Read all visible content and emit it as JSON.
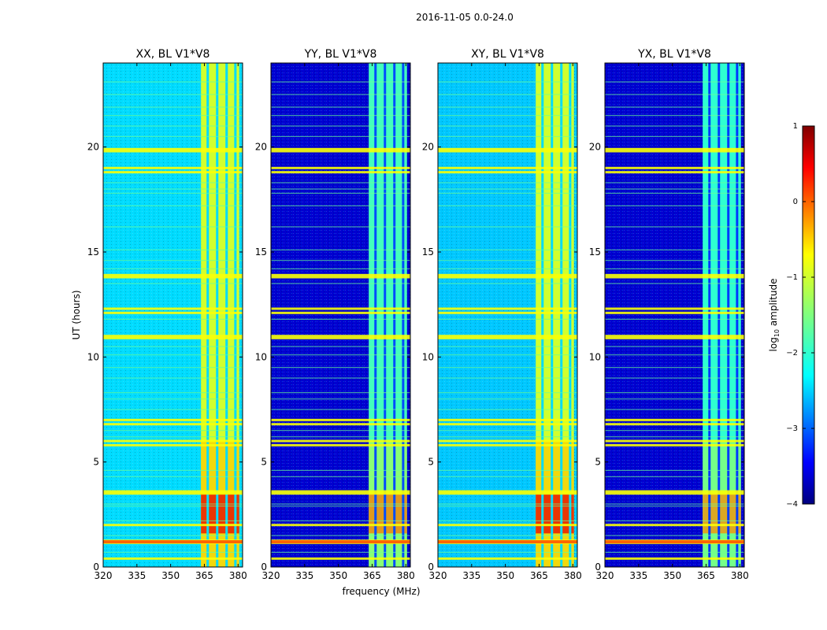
{
  "chart_data": {
    "type": "heatmap",
    "suptitle": "2016-11-05 0.0-24.0",
    "xlabel": "frequency (MHz)",
    "ylabel": "UT (hours)",
    "xlim": [
      320,
      382
    ],
    "ylim": [
      0,
      24
    ],
    "xticks": [
      320,
      335,
      350,
      365,
      380
    ],
    "yticks": [
      0,
      5,
      10,
      15,
      20
    ],
    "panels": [
      {
        "title": "XX, BL V1*V8",
        "background_level": -2.3,
        "band_level": -1.1
      },
      {
        "title": "YY, BL V1*V8",
        "background_level": -3.6,
        "band_level": -1.8
      },
      {
        "title": "XY, BL V1*V8",
        "background_level": -2.4,
        "band_level": -1.1
      },
      {
        "title": "YX, BL V1*V8",
        "background_level": -3.6,
        "band_level": -1.9
      }
    ],
    "band": {
      "start_mhz": 363.5,
      "end_mhz": 380.5,
      "channel_gaps_mhz": [
        366.5,
        370.7,
        374.9,
        378.8
      ]
    },
    "strong_rfi_hours": [
      0.4,
      1.15,
      1.25,
      2.0,
      3.5,
      3.6,
      5.8,
      6.0,
      6.8,
      7.0,
      10.9,
      11.0,
      12.1,
      12.3,
      13.8,
      13.9,
      18.8,
      19.0,
      19.8,
      19.9
    ],
    "weak_rfi_hours": [
      0.7,
      1.5,
      2.2,
      2.9,
      3.0,
      4.3,
      4.6,
      6.2,
      6.5,
      7.5,
      8.0,
      8.3,
      9.0,
      9.5,
      10.1,
      10.5,
      11.8,
      13.5,
      14.2,
      14.6,
      15.1,
      16.2,
      17.2,
      17.8,
      18.0,
      18.3,
      20.5,
      21.0,
      21.5,
      21.9,
      22.5,
      23.1
    ],
    "colorbar": {
      "label": "log",
      "label_sub": "10",
      "label_suffix": " amplitude",
      "ticks": [
        1,
        0,
        -1,
        -2,
        -3,
        -4
      ],
      "tick_labels": [
        "1",
        "0",
        "−1",
        "−2",
        "−3",
        "−4"
      ],
      "range": [
        -4,
        1
      ],
      "colormap": "jet"
    }
  },
  "colors": {
    "jet": [
      "#00007f",
      "#0000ff",
      "#007fff",
      "#00ffff",
      "#7fff7f",
      "#ffff00",
      "#ff7f00",
      "#ff0000",
      "#7f0000"
    ]
  }
}
